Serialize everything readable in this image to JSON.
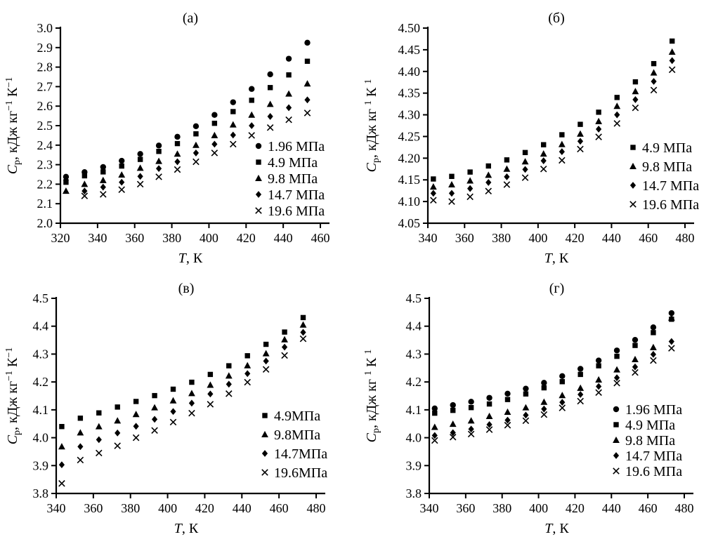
{
  "figure": {
    "background": "#ffffff",
    "ink_color": "#000000"
  },
  "chart_data": [
    {
      "panel": "a",
      "type": "scatter",
      "title": "(а)",
      "xlabel": "T, К",
      "ylabel": "C_p_, кДж кг^−1^ К^−1^",
      "xlim": [
        320,
        460
      ],
      "xtick_step": 20,
      "ylim": [
        2.0,
        3.0
      ],
      "ytick_step": 0.1,
      "ytick_decimals": 1,
      "grid": false,
      "legend_position": "inside-lower-right",
      "x": [
        323,
        333,
        343,
        353,
        363,
        373,
        383,
        393,
        403,
        413,
        423,
        433,
        443,
        453
      ],
      "series": [
        {
          "name": "1.96 МПа",
          "marker": "circle",
          "values": [
            2.238,
            2.262,
            2.288,
            2.32,
            2.355,
            2.398,
            2.443,
            2.497,
            2.555,
            2.62,
            2.688,
            2.763,
            2.843,
            2.925
          ]
        },
        {
          "name": "4.9 МПа",
          "marker": "square",
          "values": [
            2.21,
            2.243,
            2.263,
            2.293,
            2.327,
            2.368,
            2.408,
            2.458,
            2.512,
            2.572,
            2.63,
            2.695,
            2.76,
            2.83
          ]
        },
        {
          "name": "9.8 МПа",
          "marker": "triangle",
          "values": [
            2.165,
            2.2,
            2.22,
            2.248,
            2.283,
            2.318,
            2.355,
            2.4,
            2.45,
            2.505,
            2.555,
            2.61,
            2.663,
            2.715
          ]
        },
        {
          "name": "14.7 МПа",
          "marker": "diamond",
          "values": [
            2.222,
            2.165,
            2.185,
            2.21,
            2.24,
            2.28,
            2.315,
            2.36,
            2.405,
            2.452,
            2.5,
            2.547,
            2.592,
            2.632
          ]
        },
        {
          "name": "19.6 МПа",
          "marker": "x",
          "values": [
            null,
            2.14,
            2.148,
            2.172,
            2.2,
            2.238,
            2.275,
            2.315,
            2.36,
            2.405,
            2.45,
            2.49,
            2.53,
            2.565
          ]
        }
      ],
      "layout": {
        "plot_left": 86,
        "plot_right": 456,
        "legend_x": 368,
        "legend_y": 208,
        "legend_dy": 23
      }
    },
    {
      "panel": "b",
      "type": "scatter",
      "title": "(б)",
      "xlabel": "T, К",
      "ylabel": "C_p_, кДж кг ^1^ К ^1^",
      "xlim": [
        340,
        480
      ],
      "xtick_step": 20,
      "ylim": [
        4.05,
        4.5
      ],
      "ytick_step": 0.05,
      "ytick_decimals": 2,
      "grid": false,
      "legend_position": "inside-lower-right",
      "x": [
        343,
        353,
        363,
        373,
        383,
        393,
        403,
        413,
        423,
        433,
        443,
        453,
        463,
        473
      ],
      "series": [
        {
          "name": "4.9 МПа",
          "marker": "square",
          "values": [
            4.152,
            4.158,
            4.168,
            4.182,
            4.196,
            4.213,
            4.231,
            4.254,
            4.278,
            4.306,
            4.34,
            4.376,
            4.418,
            4.47
          ]
        },
        {
          "name": "9.8 МПа",
          "marker": "triangle",
          "values": [
            4.134,
            4.139,
            4.148,
            4.161,
            4.175,
            4.192,
            4.21,
            4.232,
            4.256,
            4.285,
            4.32,
            4.354,
            4.397,
            4.445
          ]
        },
        {
          "name": "14.7 МПа",
          "marker": "diamond",
          "values": [
            4.119,
            4.119,
            4.13,
            4.144,
            4.157,
            4.174,
            4.194,
            4.215,
            4.239,
            4.267,
            4.3,
            4.335,
            4.377,
            4.425
          ]
        },
        {
          "name": "19.6 МПа",
          "marker": "x",
          "values": [
            4.103,
            4.1,
            4.111,
            4.124,
            4.139,
            4.155,
            4.175,
            4.195,
            4.221,
            4.249,
            4.28,
            4.316,
            4.357,
            4.404
          ]
        }
      ],
      "layout": {
        "plot_left": 98,
        "plot_right": 464,
        "legend_x": 390,
        "legend_y": 210,
        "legend_dy": 27
      }
    },
    {
      "panel": "v",
      "type": "scatter",
      "title": "(в)",
      "xlabel": "T, К",
      "ylabel": "C_p_, кДж кг^−1^ К^−1^",
      "xlim": [
        340,
        480
      ],
      "xtick_step": 20,
      "ylim": [
        3.8,
        4.5
      ],
      "ytick_step": 0.1,
      "ytick_decimals": 1,
      "grid": false,
      "legend_position": "inside-lower-right",
      "x": [
        343,
        353,
        363,
        373,
        383,
        393,
        403,
        413,
        423,
        433,
        443,
        453,
        463,
        473
      ],
      "series": [
        {
          "name": "4.9МПа",
          "marker": "square",
          "values": [
            4.04,
            4.07,
            4.089,
            4.11,
            4.13,
            4.151,
            4.174,
            4.199,
            4.227,
            4.258,
            4.294,
            4.335,
            4.379,
            4.431
          ]
        },
        {
          "name": "9.8МПа",
          "marker": "triangle",
          "values": [
            3.968,
            4.018,
            4.04,
            4.061,
            4.084,
            4.108,
            4.133,
            4.159,
            4.189,
            4.222,
            4.259,
            4.302,
            4.352,
            4.405
          ]
        },
        {
          "name": "14.7МПа",
          "marker": "diamond",
          "values": [
            3.903,
            3.968,
            3.993,
            4.017,
            4.041,
            4.066,
            4.094,
            4.124,
            4.157,
            4.192,
            4.23,
            4.275,
            4.325,
            4.378
          ]
        },
        {
          "name": "19.6МПа",
          "marker": "x",
          "values": [
            3.836,
            3.92,
            3.945,
            3.971,
            4.0,
            4.026,
            4.056,
            4.088,
            4.12,
            4.158,
            4.199,
            4.245,
            4.295,
            4.355
          ]
        }
      ],
      "layout": {
        "plot_left": 80,
        "plot_right": 450,
        "legend_x": 377,
        "legend_y": 207,
        "legend_dy": 27
      }
    },
    {
      "panel": "g",
      "type": "scatter",
      "title": "(г)",
      "xlabel": "T, К",
      "ylabel": "C_p_, кДж кг ^1^ К ^1^",
      "xlim": [
        340,
        480
      ],
      "xtick_step": 20,
      "ylim": [
        3.8,
        4.5
      ],
      "ytick_step": 0.1,
      "ytick_decimals": 1,
      "grid": false,
      "legend_position": "inside-lower-right",
      "x": [
        343,
        353,
        363,
        373,
        383,
        393,
        403,
        413,
        423,
        433,
        443,
        453,
        463,
        473
      ],
      "series": [
        {
          "name": "1.96 МПа",
          "marker": "circle",
          "values": [
            4.105,
            4.117,
            4.129,
            4.143,
            4.158,
            4.176,
            4.197,
            4.221,
            4.247,
            4.277,
            4.313,
            4.351,
            4.396,
            4.447
          ]
        },
        {
          "name": "4.9 МПа",
          "marker": "square",
          "values": [
            4.088,
            4.098,
            4.108,
            4.121,
            4.137,
            4.157,
            4.179,
            4.201,
            4.227,
            4.258,
            4.292,
            4.331,
            4.377,
            4.425
          ]
        },
        {
          "name": "9.8 МПа",
          "marker": "triangle",
          "values": [
            4.038,
            4.049,
            4.061,
            4.077,
            4.092,
            4.108,
            4.128,
            4.152,
            4.178,
            4.208,
            4.244,
            4.281,
            4.324,
            4.43
          ]
        },
        {
          "name": "14.7 МПа",
          "marker": "diamond",
          "values": [
            4.008,
            4.018,
            4.031,
            4.047,
            4.063,
            4.081,
            4.103,
            4.127,
            4.155,
            4.184,
            4.215,
            4.254,
            4.299,
            4.345
          ]
        },
        {
          "name": "19.6 МПа",
          "marker": "x",
          "values": [
            3.99,
            4.002,
            4.013,
            4.029,
            4.045,
            4.061,
            4.083,
            4.107,
            4.131,
            4.162,
            4.196,
            4.234,
            4.277,
            4.321
          ]
        }
      ],
      "layout": {
        "plot_left": 100,
        "plot_right": 463,
        "legend_x": 366,
        "legend_y": 198,
        "legend_dy": 22
      }
    }
  ]
}
